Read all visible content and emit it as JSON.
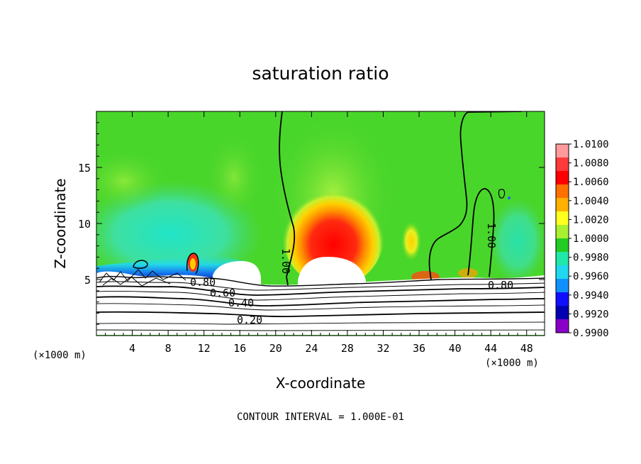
{
  "chart_data": {
    "type": "heatmap",
    "title": "saturation ratio",
    "xlabel": "X-coordinate",
    "ylabel": "Z-coordinate",
    "x_unit_left": "(×1000 m)",
    "x_unit_right": "(×1000 m)",
    "footer": "CONTOUR INTERVAL = 1.000E-01",
    "xlim": [
      0,
      50
    ],
    "ylim": [
      0,
      20
    ],
    "x_ticks": [
      4,
      8,
      12,
      16,
      20,
      24,
      28,
      32,
      36,
      40,
      44,
      48
    ],
    "x_tick_labels": [
      "4",
      "8",
      "12",
      "16",
      "20",
      "24",
      "28",
      "32",
      "36",
      "40",
      "44",
      "48"
    ],
    "y_ticks": [
      5,
      10,
      15
    ],
    "y_tick_labels": [
      "5",
      "10",
      "15"
    ],
    "colorbar": {
      "labels": [
        "1.0100",
        "1.0080",
        "1.0060",
        "1.0040",
        "1.0020",
        "1.0000",
        "0.9980",
        "0.9960",
        "0.9940",
        "0.9920",
        "0.9900"
      ],
      "colors": [
        "#ff9a9a",
        "#ff3a3a",
        "#ff0000",
        "#ff7000",
        "#ffb000",
        "#ffff20",
        "#a8f030",
        "#22cc22",
        "#20e8a8",
        "#20d8f0",
        "#1090ff",
        "#1010ff",
        "#0000b0",
        "#8800c8"
      ]
    },
    "contour_labels": [
      {
        "text": "1.00",
        "x": 21.0,
        "z": 6.5
      },
      {
        "text": "1.00",
        "x": 44.5,
        "z": 8.5
      },
      {
        "text": "0.80",
        "x": 12.0,
        "z": 4.8
      },
      {
        "text": "0.80",
        "x": 46.0,
        "z": 4.5
      },
      {
        "text": "0.60",
        "x": 14.5,
        "z": 3.8
      },
      {
        "text": "0.40",
        "x": 16.0,
        "z": 2.9
      },
      {
        "text": "0.20",
        "x": 17.0,
        "z": 1.3
      }
    ],
    "features": [
      {
        "kind": "supersaturated_core",
        "x": 26.5,
        "z": 8.5,
        "peak": 1.008
      },
      {
        "kind": "saturated_background",
        "value": 1.0
      },
      {
        "kind": "subsaturated_band",
        "x_range": [
          2,
          20
        ],
        "z": 5.5,
        "value": 0.993
      },
      {
        "kind": "cloud_free_dry_layer_below",
        "z_max": 4.8
      }
    ]
  }
}
